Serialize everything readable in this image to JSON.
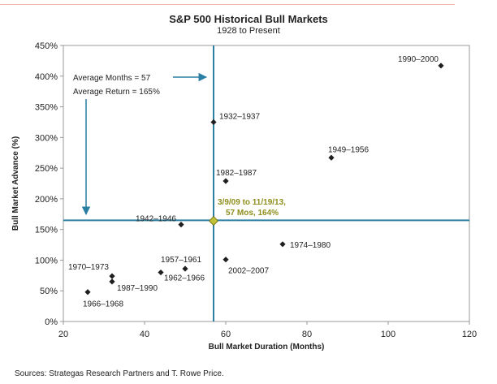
{
  "chart_data": {
    "type": "scatter",
    "title": "S&P 500 Historical Bull Markets",
    "subtitle": "1928 to Present",
    "xlabel": "Bull Market Duration (Months)",
    "ylabel": "Bull Market Advance (%)",
    "xlim": [
      20,
      120
    ],
    "ylim": [
      0,
      450
    ],
    "xticks": [
      20,
      40,
      60,
      80,
      100,
      120
    ],
    "xtick_labels": [
      "20",
      "40",
      "60",
      "80",
      "100",
      "120"
    ],
    "yticks": [
      0,
      50,
      100,
      150,
      200,
      250,
      300,
      350,
      400,
      450
    ],
    "ytick_labels": [
      "0%",
      "50%",
      "100%",
      "150%",
      "200%",
      "250%",
      "300%",
      "350%",
      "400%",
      "450%"
    ],
    "grid": false,
    "points": [
      {
        "label": "1990–2000",
        "x": 113,
        "y": 417
      },
      {
        "label": "1932–1937",
        "x": 57,
        "y": 325
      },
      {
        "label": "1949–1956",
        "x": 86,
        "y": 267
      },
      {
        "label": "1982–1987",
        "x": 60,
        "y": 229
      },
      {
        "label": "1942–1946",
        "x": 49,
        "y": 158
      },
      {
        "label": "1974–1980",
        "x": 74,
        "y": 126
      },
      {
        "label": "1957–1961",
        "x": 50,
        "y": 86
      },
      {
        "label": "2002–2007",
        "x": 60,
        "y": 101
      },
      {
        "label": "1962–1966",
        "x": 44,
        "y": 80
      },
      {
        "label": "1970–1973",
        "x": 32,
        "y": 74
      },
      {
        "label": "1987–1990",
        "x": 32,
        "y": 65
      },
      {
        "label": "1966–1968",
        "x": 26,
        "y": 48
      }
    ],
    "highlight": {
      "label_line1": "3/9/09 to 11/19/13,",
      "label_line2": "57 Mos, 164%",
      "x": 57,
      "y": 164
    },
    "average": {
      "months_label": "Average  Months = 57",
      "return_label": "Average  Return = 165%",
      "x": 57,
      "y": 165
    }
  },
  "source": "Sources: Strategas Research Partners and T. Rowe Price.",
  "colors": {
    "point": "#1f1f1f",
    "axis_line": "#2a7fa3",
    "highlight_fill": "#bfbf3a",
    "highlight_text": "#8e8e1c",
    "frame": "#999999"
  }
}
